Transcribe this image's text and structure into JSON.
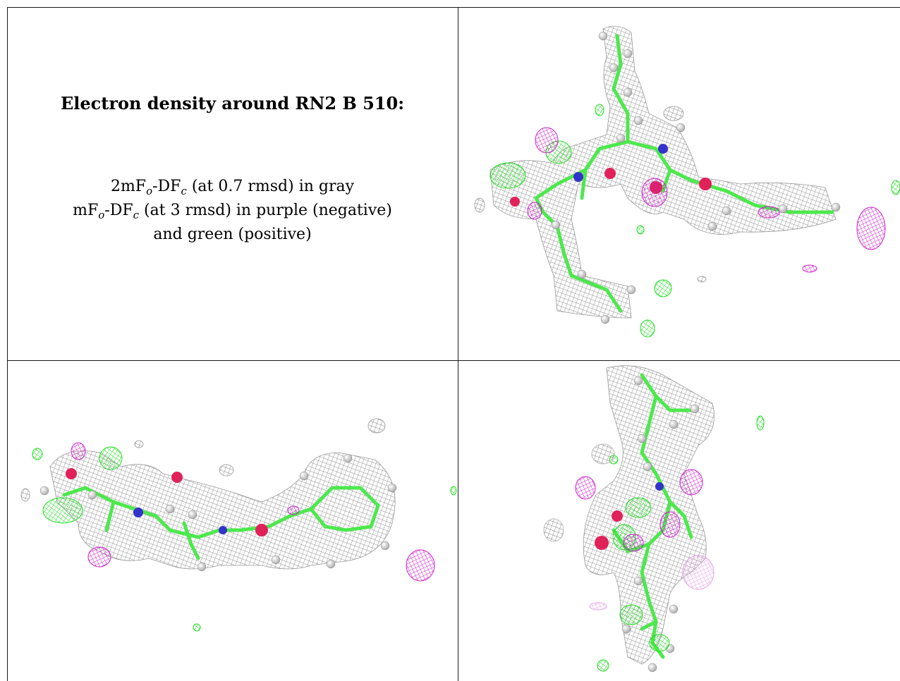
{
  "caption": {
    "title": "Electron density around RN2 B 510:",
    "line1": {
      "prefix": "2mF",
      "sub_o": "o",
      "mid": "-DF",
      "sub_c": "c",
      "suffix": " (at 0.7 rmsd) in gray"
    },
    "line2": {
      "prefix": "mF",
      "sub_o": "o",
      "mid": "-DF",
      "sub_c": "c",
      "suffix": " (at 3 rmsd) in purple (negative)"
    },
    "line3": "and green (positive)"
  },
  "colors": {
    "mesh_2fofc": "#8a8a8a",
    "mesh_positive": "#22dd22",
    "mesh_negative": "#cc22cc",
    "bond_carbon": "#4de84d",
    "atom_nitrogen": "#3333cc",
    "atom_oxygen": "#e0215a",
    "atom_hydrogen": "#f0f0f0",
    "grid_line": "#1a1a1a"
  },
  "panels": [
    {
      "name": "view-top-right"
    },
    {
      "name": "view-bottom-left"
    },
    {
      "name": "view-bottom-right"
    }
  ]
}
